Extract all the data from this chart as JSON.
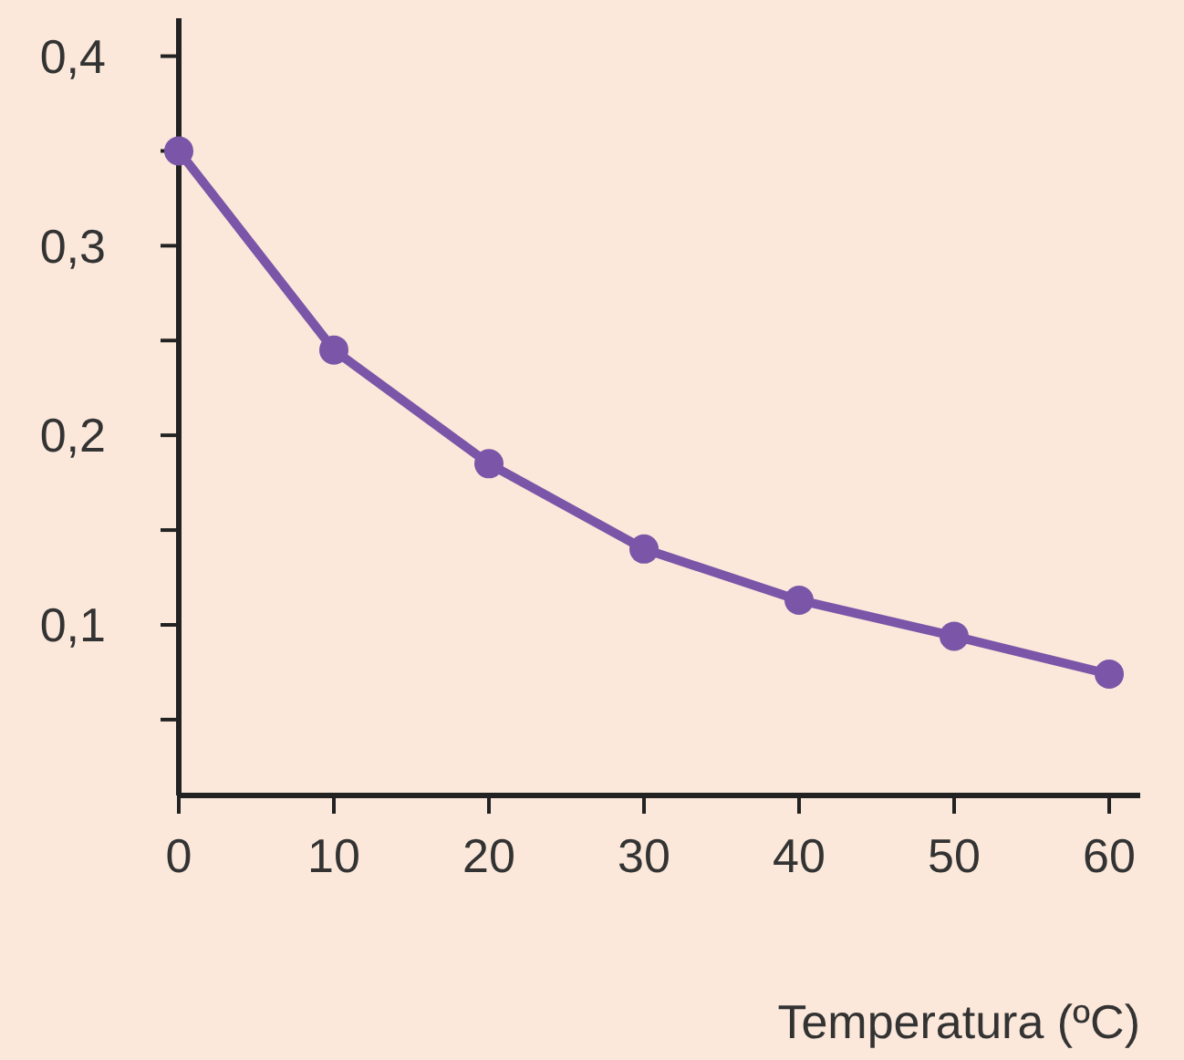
{
  "chart_data": {
    "type": "line",
    "xlabel": "Temperatura (ºC)",
    "x": [
      0,
      10,
      20,
      30,
      40,
      50,
      60
    ],
    "series": [
      {
        "color": "#7b55a8",
        "values": [
          0.35,
          0.245,
          0.185,
          0.14,
          0.113,
          0.094,
          0.074
        ]
      }
    ],
    "xlim": [
      0,
      62
    ],
    "xticks": [
      0,
      10,
      20,
      30,
      40,
      50,
      60
    ],
    "ylim": [
      0.01,
      0.42
    ],
    "yticks": [
      {
        "value": 0.05,
        "label": null
      },
      {
        "value": 0.1,
        "label": "0,1"
      },
      {
        "value": 0.15,
        "label": null
      },
      {
        "value": 0.2,
        "label": "0,2"
      },
      {
        "value": 0.25,
        "label": null
      },
      {
        "value": 0.3,
        "label": "0,3"
      },
      {
        "value": 0.35,
        "label": null
      },
      {
        "value": 0.4,
        "label": "0,4"
      }
    ],
    "marker": "circle",
    "grid": false
  }
}
